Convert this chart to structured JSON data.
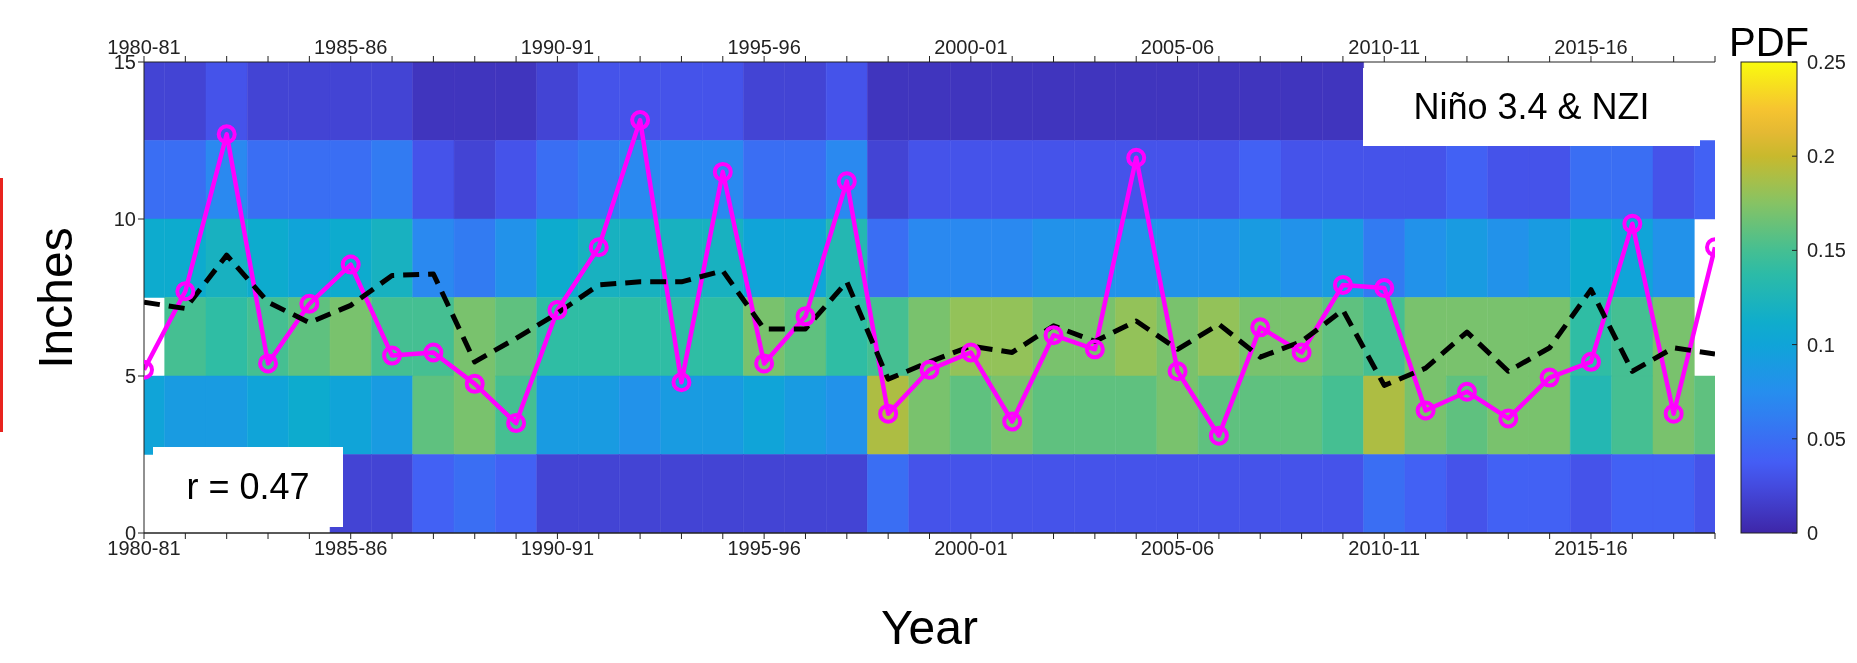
{
  "chart_data": [
    {
      "type": "line",
      "xlabel": "Year",
      "ylabel": "Inches",
      "categories": [
        "1980-81",
        null,
        null,
        null,
        null,
        "1985-86",
        null,
        null,
        null,
        null,
        "1990-91",
        null,
        null,
        null,
        null,
        "1995-96",
        null,
        null,
        null,
        null,
        "2000-01",
        null,
        null,
        null,
        null,
        "2005-06",
        null,
        null,
        null,
        null,
        "2010-11",
        null,
        null,
        null,
        null,
        "2015-16",
        null,
        null,
        null
      ],
      "series": [
        {
          "color": "#ff00ff",
          "marker": "circle",
          "line_style": "solid",
          "values": [
            5.2,
            7.7,
            12.7,
            5.4,
            7.3,
            8.55,
            5.65,
            5.75,
            4.75,
            3.5,
            7.1,
            9.1,
            13.15,
            4.8,
            11.5,
            5.4,
            6.9,
            11.2,
            3.8,
            5.2,
            5.75,
            3.55,
            6.3,
            5.85,
            11.95,
            5.15,
            3.1,
            6.55,
            5.75,
            7.9,
            7.8,
            3.9,
            4.5,
            3.65,
            4.95,
            5.45,
            9.85,
            3.8,
            9.1
          ]
        },
        {
          "color": "#000000",
          "marker": "none",
          "line_style": "dashed",
          "values": [
            7.35,
            7.15,
            8.85,
            7.35,
            6.7,
            7.25,
            8.2,
            8.25,
            5.45,
            6.2,
            7.0,
            7.9,
            8.0,
            8.0,
            8.35,
            6.5,
            6.5,
            8.0,
            4.9,
            5.45,
            5.95,
            5.75,
            6.6,
            6.1,
            6.75,
            5.85,
            6.65,
            5.6,
            6.1,
            7.1,
            4.7,
            5.25,
            6.4,
            5.15,
            5.9,
            7.75,
            5.15,
            5.9,
            5.7
          ]
        }
      ],
      "ylim": [
        0,
        15
      ],
      "yticks": [
        0,
        5,
        10,
        15
      ],
      "annotations": [
        "Niño 3.4 & NZI",
        "r = 0.47"
      ]
    },
    {
      "type": "heatmap",
      "clabel": "PDF",
      "clim": [
        0,
        0.25
      ],
      "cticks": [
        0,
        0.05,
        0.1,
        0.15,
        0.2,
        0.25
      ],
      "tick_labels": "x",
      "categories": [
        "1980-81",
        null,
        null,
        null,
        null,
        "1985-86",
        null,
        null,
        null,
        null,
        "1990-91",
        null,
        null,
        null,
        null,
        "1995-96",
        null,
        null,
        null,
        null,
        "2000-01",
        null,
        null,
        null,
        null,
        "2005-06",
        null,
        null,
        null,
        null,
        "2010-11",
        null,
        null,
        null,
        null,
        "2015-16",
        null,
        null,
        null
      ],
      "y_categories": [
        null,
        null,
        null,
        null,
        null,
        null
      ],
      "cells": [
        [
          0.02,
          0.02,
          0.03,
          0.02,
          0.02,
          0.02,
          0.02,
          0.01,
          0.01,
          0.01,
          0.02,
          0.03,
          0.03,
          0.03,
          0.03,
          0.02,
          0.02,
          0.03,
          0.01,
          0.01,
          0.01,
          0.01,
          0.01,
          0.01,
          0.01,
          0.01,
          0.01,
          0.01,
          0.01,
          0.01,
          null,
          null,
          null,
          null,
          null,
          null,
          null,
          null,
          null
        ],
        [
          0.05,
          0.05,
          0.07,
          0.05,
          0.05,
          0.05,
          0.06,
          0.03,
          0.02,
          0.03,
          0.05,
          0.06,
          0.07,
          0.07,
          0.07,
          0.05,
          0.05,
          0.07,
          0.02,
          0.03,
          0.03,
          0.03,
          0.03,
          0.03,
          0.03,
          0.03,
          0.03,
          0.04,
          0.03,
          0.03,
          0.03,
          0.03,
          0.04,
          0.03,
          0.03,
          0.05,
          0.05,
          0.03,
          0.04
        ],
        [
          0.11,
          0.11,
          0.12,
          0.11,
          0.1,
          0.11,
          0.12,
          0.07,
          0.06,
          0.08,
          0.11,
          0.12,
          0.12,
          0.12,
          0.12,
          0.1,
          0.1,
          0.13,
          0.05,
          0.07,
          0.07,
          0.07,
          0.08,
          0.08,
          0.08,
          0.08,
          0.08,
          0.09,
          0.08,
          0.09,
          0.06,
          0.08,
          0.09,
          0.08,
          0.09,
          0.11,
          0.1,
          0.08,
          null
        ],
        [
          null,
          0.15,
          0.14,
          0.15,
          0.16,
          0.17,
          0.15,
          0.15,
          0.17,
          0.16,
          0.14,
          0.14,
          0.14,
          0.14,
          0.14,
          0.17,
          0.16,
          0.14,
          0.15,
          0.17,
          0.18,
          0.18,
          0.17,
          0.17,
          0.18,
          0.17,
          0.18,
          0.17,
          0.17,
          0.16,
          0.15,
          0.17,
          0.17,
          0.17,
          0.17,
          0.14,
          0.15,
          0.17,
          null
        ],
        [
          0.1,
          0.09,
          0.09,
          0.1,
          0.11,
          0.1,
          0.09,
          0.16,
          0.17,
          0.15,
          0.09,
          0.09,
          0.08,
          0.09,
          0.09,
          0.1,
          0.09,
          0.08,
          0.19,
          0.17,
          0.16,
          0.17,
          0.16,
          0.16,
          0.16,
          0.17,
          0.16,
          0.16,
          0.16,
          0.15,
          0.19,
          0.17,
          0.16,
          0.17,
          0.17,
          0.13,
          0.15,
          0.17,
          0.16
        ],
        [
          null,
          null,
          null,
          null,
          null,
          0.02,
          0.02,
          0.04,
          0.05,
          0.04,
          0.02,
          0.02,
          0.02,
          0.02,
          0.02,
          0.02,
          0.02,
          0.02,
          0.05,
          0.03,
          0.03,
          0.03,
          0.03,
          0.03,
          0.03,
          0.03,
          0.03,
          0.03,
          0.03,
          0.03,
          0.05,
          0.04,
          0.03,
          0.04,
          0.04,
          0.03,
          0.04,
          0.04,
          0.03
        ]
      ]
    }
  ]
}
